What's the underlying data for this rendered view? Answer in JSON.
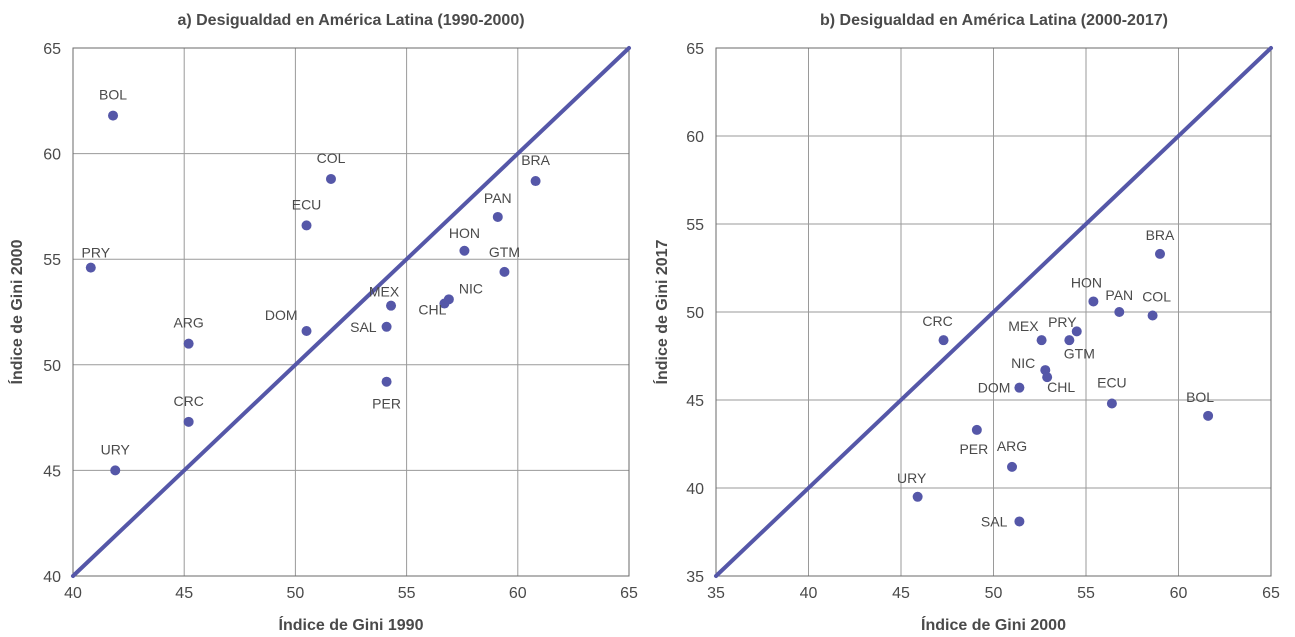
{
  "chart_data": [
    {
      "type": "scatter",
      "title": "a) Desigualdad en América Latina (1990-2000)",
      "xlabel": "Índice de Gini 1990",
      "ylabel": "Índice de Gini 2000",
      "xlim": [
        40,
        65
      ],
      "ylim": [
        40,
        65
      ],
      "xticks": [
        40,
        45,
        50,
        55,
        60,
        65
      ],
      "yticks": [
        40,
        45,
        50,
        55,
        60,
        65
      ],
      "grid": true,
      "diagonal": true,
      "points": [
        {
          "label": "BOL",
          "x": 41.8,
          "y": 61.8
        },
        {
          "label": "PRY",
          "x": 40.8,
          "y": 54.6
        },
        {
          "label": "ARG",
          "x": 45.2,
          "y": 51.0
        },
        {
          "label": "CRC",
          "x": 45.2,
          "y": 47.3
        },
        {
          "label": "URY",
          "x": 41.9,
          "y": 45.0
        },
        {
          "label": "COL",
          "x": 51.6,
          "y": 58.8
        },
        {
          "label": "ECU",
          "x": 50.5,
          "y": 56.6
        },
        {
          "label": "DOM",
          "x": 50.5,
          "y": 51.6
        },
        {
          "label": "MEX",
          "x": 54.3,
          "y": 52.8
        },
        {
          "label": "SAL",
          "x": 54.1,
          "y": 51.8
        },
        {
          "label": "PER",
          "x": 54.1,
          "y": 49.2
        },
        {
          "label": "HON",
          "x": 57.6,
          "y": 55.4
        },
        {
          "label": "NIC",
          "x": 56.9,
          "y": 53.1
        },
        {
          "label": "CHL",
          "x": 56.7,
          "y": 52.9
        },
        {
          "label": "GTM",
          "x": 59.4,
          "y": 54.4
        },
        {
          "label": "PAN",
          "x": 59.1,
          "y": 57.0
        },
        {
          "label": "BRA",
          "x": 60.8,
          "y": 58.7
        }
      ]
    },
    {
      "type": "scatter",
      "title": "b) Desigualdad en América Latina (2000-2017)",
      "xlabel": "Índice de Gini 2000",
      "ylabel": "Índice de Gini 2017",
      "xlim": [
        35,
        65
      ],
      "ylim": [
        35,
        65
      ],
      "xticks": [
        35,
        40,
        45,
        50,
        55,
        60,
        65
      ],
      "yticks": [
        35,
        40,
        45,
        50,
        55,
        60,
        65
      ],
      "grid": true,
      "diagonal": true,
      "points": [
        {
          "label": "CRC",
          "x": 47.3,
          "y": 48.4
        },
        {
          "label": "URY",
          "x": 45.9,
          "y": 39.5
        },
        {
          "label": "PER",
          "x": 49.1,
          "y": 43.3
        },
        {
          "label": "ARG",
          "x": 51.0,
          "y": 41.2
        },
        {
          "label": "SAL",
          "x": 51.4,
          "y": 38.1
        },
        {
          "label": "DOM",
          "x": 51.4,
          "y": 45.7
        },
        {
          "label": "NIC",
          "x": 52.8,
          "y": 46.7
        },
        {
          "label": "CHL",
          "x": 52.9,
          "y": 46.3
        },
        {
          "label": "MEX",
          "x": 52.6,
          "y": 48.4
        },
        {
          "label": "PRY",
          "x": 54.1,
          "y": 48.4
        },
        {
          "label": "GTM",
          "x": 54.5,
          "y": 48.9
        },
        {
          "label": "HON",
          "x": 55.4,
          "y": 50.6
        },
        {
          "label": "PAN",
          "x": 56.8,
          "y": 50.0
        },
        {
          "label": "COL",
          "x": 58.6,
          "y": 49.8
        },
        {
          "label": "ECU",
          "x": 56.4,
          "y": 44.8
        },
        {
          "label": "BRA",
          "x": 59.0,
          "y": 53.3
        },
        {
          "label": "BOL",
          "x": 61.6,
          "y": 44.1
        }
      ]
    }
  ],
  "colors": {
    "point": "#5557a8",
    "diagonal": "#5557a8",
    "grid": "#9a9a9a",
    "text": "#4a4a4a"
  }
}
